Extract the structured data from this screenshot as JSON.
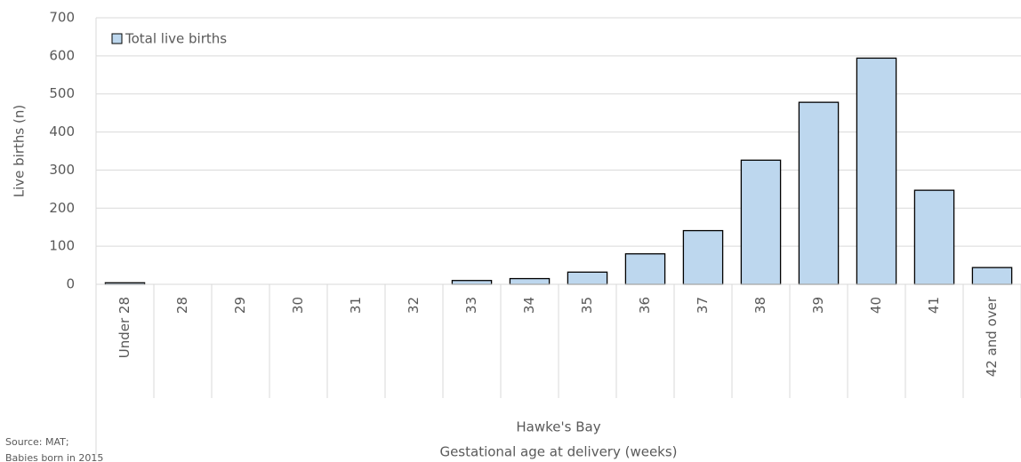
{
  "chart_data": {
    "type": "bar",
    "y_label": "Live births (n)",
    "group_label": "Hawke's Bay",
    "x_label": "Gestational age at delivery (weeks)",
    "source": [
      "Source: MAT;",
      "Babies born in 2015"
    ],
    "categories": [
      "Under 28",
      "28",
      "29",
      "30",
      "31",
      "32",
      "33",
      "34",
      "35",
      "36",
      "37",
      "38",
      "39",
      "40",
      "41",
      "42 and over"
    ],
    "series": [
      {
        "name": "Total live births",
        "color": "#bdd7ee",
        "values": [
          4,
          0,
          0,
          0,
          0,
          0,
          10,
          15,
          32,
          80,
          141,
          326,
          478,
          594,
          247,
          44
        ]
      }
    ],
    "ylim": [
      0,
      700
    ],
    "yticks": [
      0,
      100,
      200,
      300,
      400,
      500,
      600,
      700
    ],
    "grid": true,
    "legend": "top-left"
  }
}
